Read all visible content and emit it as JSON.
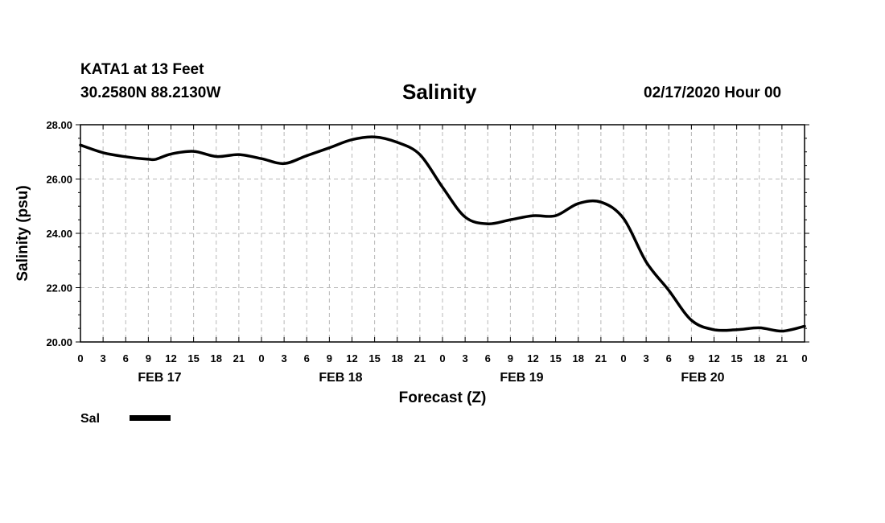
{
  "header": {
    "station": "KATA1 at 13 Feet",
    "coords": "30.2580N 88.2130W",
    "title": "Salinity",
    "timestamp": "02/17/2020 Hour 00"
  },
  "chart_data": {
    "type": "line",
    "title": "Salinity",
    "xlabel": "Forecast (Z)",
    "ylabel": "Salinity (psu)",
    "ylim": [
      20,
      28
    ],
    "yticks": [
      "20.00",
      "22.00",
      "24.00",
      "26.00",
      "28.00"
    ],
    "xlim_hours": [
      0,
      96
    ],
    "hour_tick_labels": [
      "0",
      "3",
      "6",
      "9",
      "12",
      "15",
      "18",
      "21",
      "0",
      "3",
      "6",
      "9",
      "12",
      "15",
      "18",
      "21",
      "0",
      "3",
      "6",
      "9",
      "12",
      "15",
      "18",
      "21",
      "0",
      "3",
      "6",
      "9",
      "12",
      "15",
      "18",
      "21",
      "0"
    ],
    "day_labels": [
      "FEB 17",
      "FEB 18",
      "FEB 19",
      "FEB 20"
    ],
    "grid": true,
    "legend_position": "bottom-left",
    "series": [
      {
        "name": "Sal",
        "color": "#000000",
        "x_hours": [
          0,
          3,
          6,
          9,
          10,
          12,
          15,
          18,
          21,
          24,
          27,
          30,
          33,
          36,
          39,
          42,
          45,
          48,
          51,
          54,
          57,
          60,
          63,
          66,
          69,
          72,
          75,
          78,
          81,
          84,
          87,
          90,
          93,
          96
        ],
        "values": [
          27.25,
          26.97,
          26.82,
          26.73,
          26.73,
          26.92,
          27.02,
          26.83,
          26.9,
          26.75,
          26.57,
          26.86,
          27.15,
          27.45,
          27.55,
          27.35,
          26.9,
          25.7,
          24.6,
          24.35,
          24.5,
          24.65,
          24.65,
          25.1,
          25.15,
          24.55,
          22.95,
          21.9,
          20.8,
          20.45,
          20.45,
          20.52,
          20.4,
          20.58
        ]
      }
    ]
  }
}
